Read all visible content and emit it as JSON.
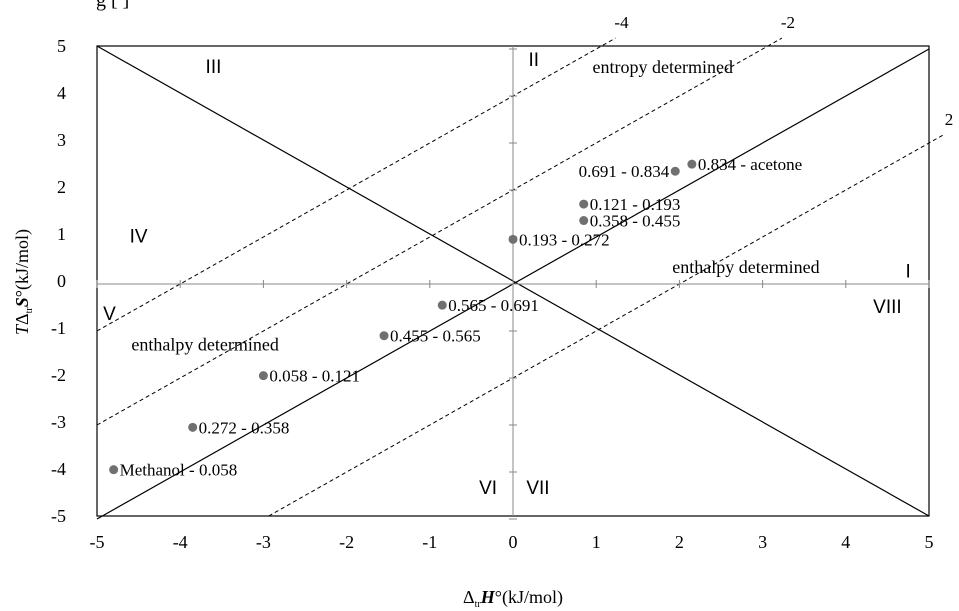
{
  "chart_data": {
    "type": "scatter",
    "header_fragment": "g        [     ]",
    "xlabel": "Δ",
    "xlabel_sub": "tr",
    "xlabel_var": "H",
    "xlabel_rest": "°(kJ/mol)",
    "ylabel_T": "T",
    "ylabel_delta": "Δ",
    "ylabel_sub": "tr",
    "ylabel_var": "S",
    "ylabel_rest": "°(kJ/mol)",
    "xlim": [
      -5,
      5
    ],
    "ylim": [
      -5,
      5
    ],
    "x_ticks": [
      "-5",
      "-4",
      "-3",
      "-2",
      "-1",
      "0",
      "1",
      "2",
      "3",
      "4",
      "5"
    ],
    "y_ticks": [
      "-5",
      "-4",
      "-3",
      "-2",
      "-1",
      "0",
      "1",
      "2",
      "3",
      "4",
      "5"
    ],
    "grid": false,
    "series": [
      {
        "color": "#707070",
        "points": [
          {
            "x": 2.15,
            "y": 2.55,
            "label": "0.834 - acetone"
          },
          {
            "x": 1.95,
            "y": 2.4,
            "label": "0.691 - 0.834"
          },
          {
            "x": 0.85,
            "y": 1.7,
            "label": "0.121 - 0.193"
          },
          {
            "x": 0.85,
            "y": 1.35,
            "label": "0.358 - 0.455"
          },
          {
            "x": 0.0,
            "y": 0.95,
            "label": "0.193 - 0.272"
          },
          {
            "x": -0.85,
            "y": -0.45,
            "label": "0.565 - 0.691"
          },
          {
            "x": -1.55,
            "y": -1.1,
            "label": "0.455 - 0.565"
          },
          {
            "x": -3.0,
            "y": -1.95,
            "label": "0.058 - 0.121"
          },
          {
            "x": -3.85,
            "y": -3.05,
            "label": "0.272 - 0.358"
          },
          {
            "x": -4.8,
            "y": -3.95,
            "label": "Methanol - 0.058"
          }
        ]
      }
    ],
    "dashed_lines": [
      {
        "label": "-4",
        "offset": 4.0
      },
      {
        "label": "-2",
        "offset": 2.0
      },
      {
        "label": "2",
        "offset": -2.0
      }
    ],
    "region_labels": [
      {
        "text": "III",
        "x": -3.6,
        "y": 4.55
      },
      {
        "text": "II",
        "x": 0.25,
        "y": 4.7
      },
      {
        "text": "IV",
        "x": -4.5,
        "y": 0.95
      },
      {
        "text": "I",
        "x": 4.75,
        "y": 0.2
      },
      {
        "text": "V",
        "x": -4.85,
        "y": -0.7
      },
      {
        "text": "VIII",
        "x": 4.5,
        "y": -0.55
      },
      {
        "text": "VI",
        "x": -0.3,
        "y": -4.4
      },
      {
        "text": "VII",
        "x": 0.3,
        "y": -4.4
      }
    ],
    "annotations": [
      {
        "text": "entropy determined",
        "x": 1.8,
        "y": 4.55
      },
      {
        "text": "enthalpy determined",
        "x": 2.8,
        "y": 0.3
      },
      {
        "text": "enthalpy determined",
        "x": -3.7,
        "y": -1.35
      }
    ]
  }
}
